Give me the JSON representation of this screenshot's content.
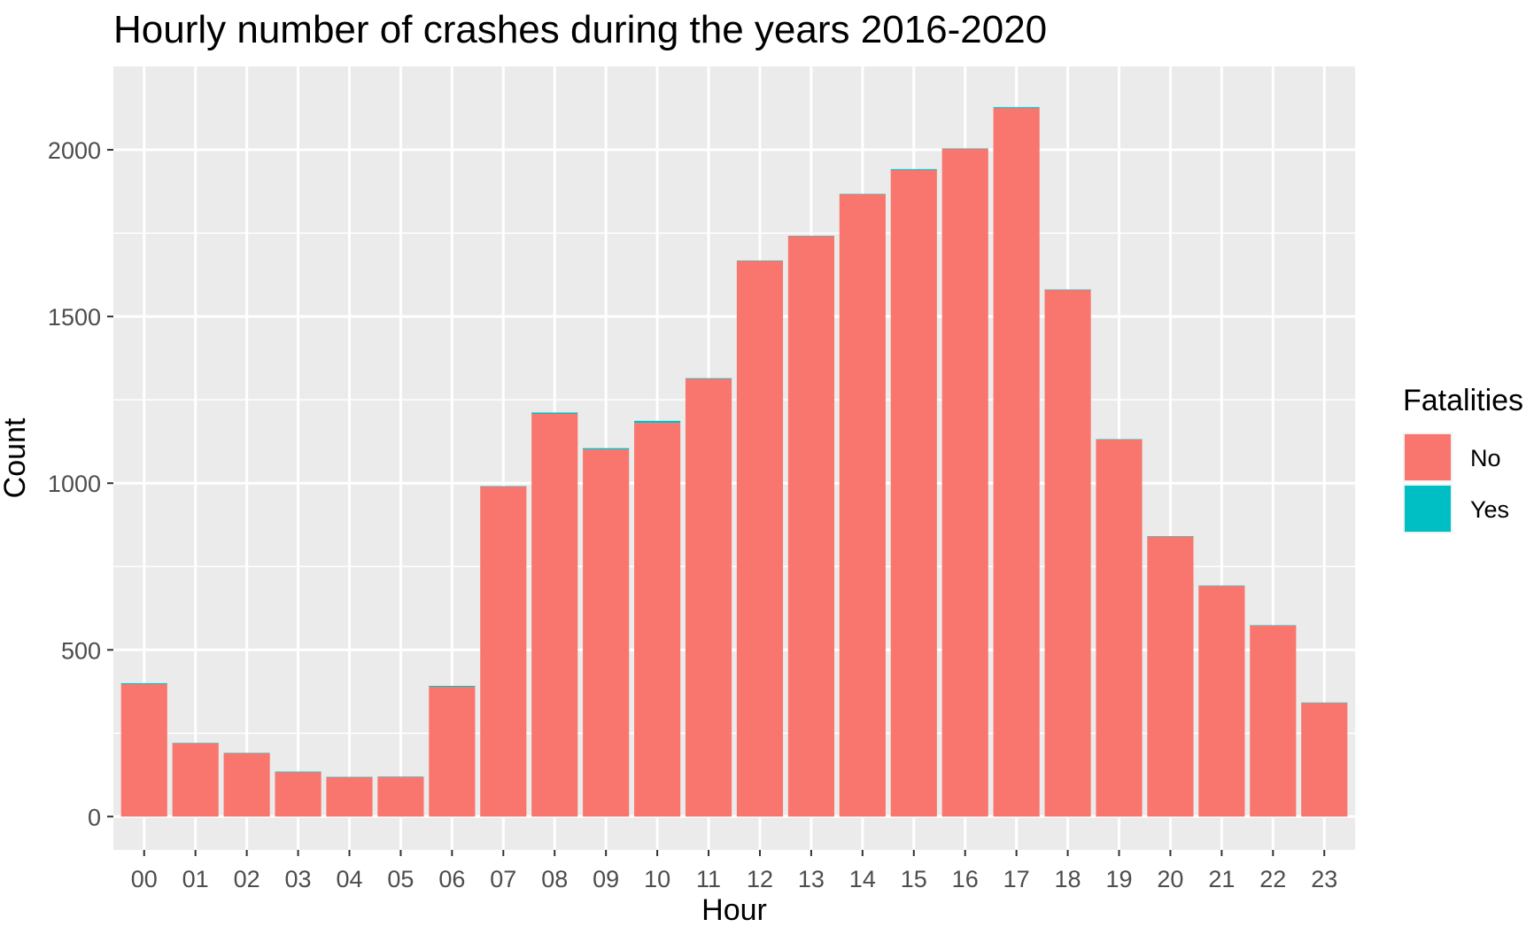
{
  "chart_data": {
    "type": "bar",
    "stacked": true,
    "title": "Hourly number of crashes during the years 2016-2020",
    "xlabel": "Hour",
    "ylabel": "Count",
    "ylim": [
      -100,
      2250
    ],
    "yticks": [
      0,
      500,
      1000,
      1500,
      2000
    ],
    "grid": true,
    "legend": {
      "title": "Fatalities",
      "position": "right"
    },
    "categories": [
      "00",
      "01",
      "02",
      "03",
      "04",
      "05",
      "06",
      "07",
      "08",
      "09",
      "10",
      "11",
      "12",
      "13",
      "14",
      "15",
      "16",
      "17",
      "18",
      "19",
      "20",
      "21",
      "22",
      "23"
    ],
    "series": [
      {
        "name": "No",
        "color": "#F8766D",
        "values": [
          397,
          220,
          190,
          133,
          118,
          119,
          389,
          990,
          1208,
          1101,
          1181,
          1313,
          1667,
          1741,
          1867,
          1939,
          2003,
          2125,
          1580,
          1131,
          840,
          692,
          573,
          341
        ]
      },
      {
        "name": "Yes",
        "color": "#00BFC4",
        "values": [
          3,
          1,
          1,
          2,
          1,
          1,
          3,
          1,
          4,
          4,
          6,
          2,
          1,
          1,
          1,
          3,
          1,
          3,
          1,
          1,
          1,
          1,
          1,
          1
        ]
      }
    ]
  }
}
